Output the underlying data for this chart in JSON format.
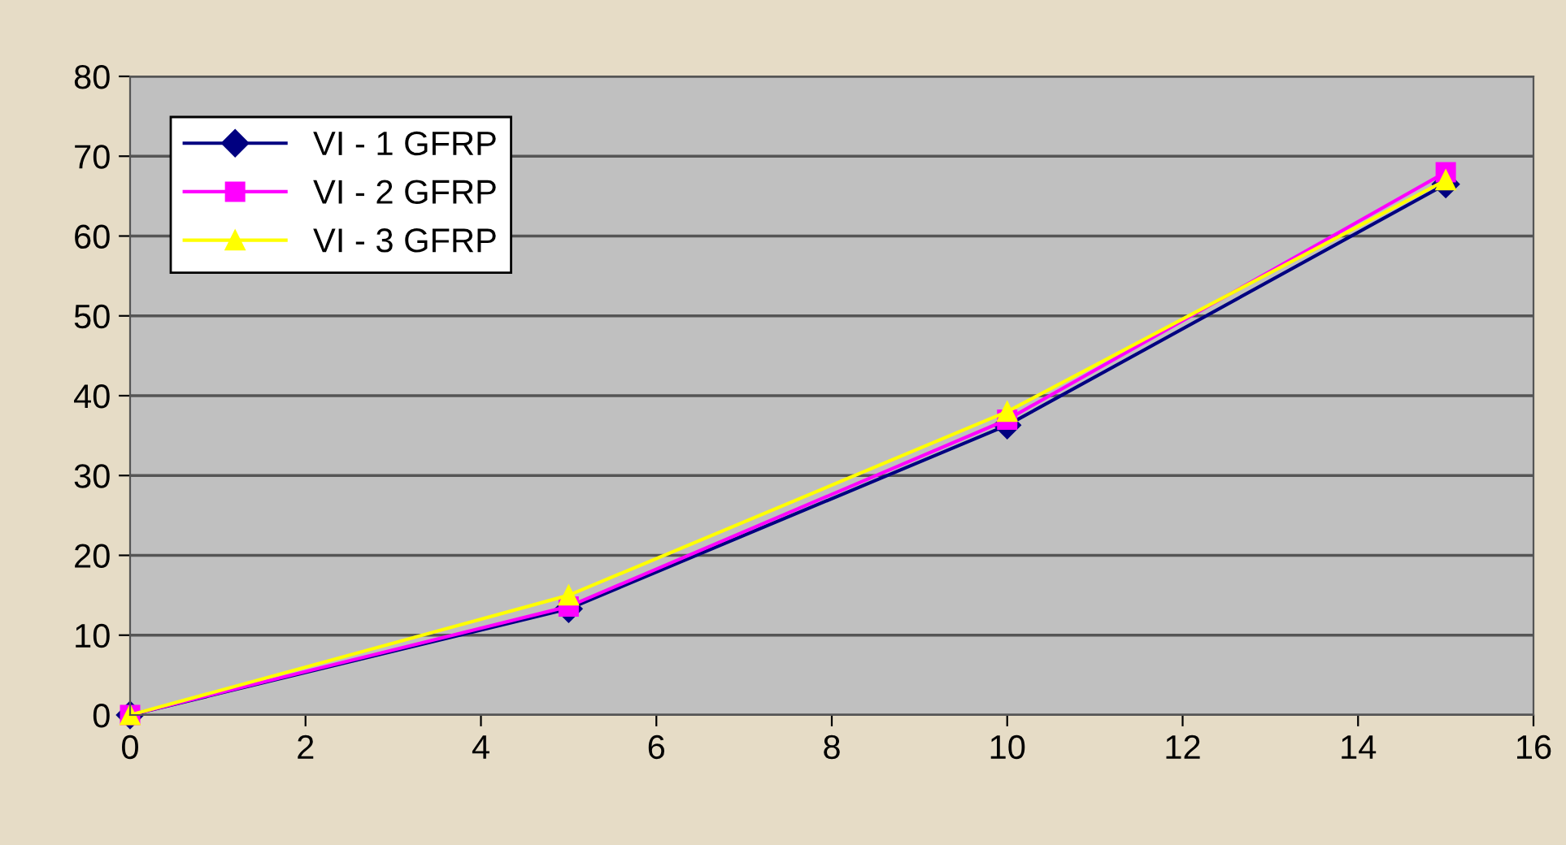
{
  "chart_data": {
    "type": "line",
    "x": [
      0,
      5,
      10,
      15
    ],
    "series": [
      {
        "name": "VI - 1 GFRP",
        "color": "#000080",
        "marker": "diamond",
        "values": [
          0,
          13.3,
          36.3,
          66.5
        ]
      },
      {
        "name": "VI - 2 GFRP",
        "color": "#ff00ff",
        "marker": "square",
        "values": [
          0,
          13.6,
          37,
          68
        ]
      },
      {
        "name": "VI - 3 GFRP",
        "color": "#ffff00",
        "marker": "triangle",
        "values": [
          0,
          15,
          38,
          67
        ]
      }
    ],
    "xlim": [
      0,
      16
    ],
    "xticks": [
      0,
      2,
      4,
      6,
      8,
      10,
      12,
      14,
      16
    ],
    "ylim": [
      0,
      80
    ],
    "yticks": [
      0,
      10,
      20,
      30,
      40,
      50,
      60,
      70,
      80
    ],
    "grid": "y",
    "legend": "top left",
    "line_style": "solid"
  }
}
